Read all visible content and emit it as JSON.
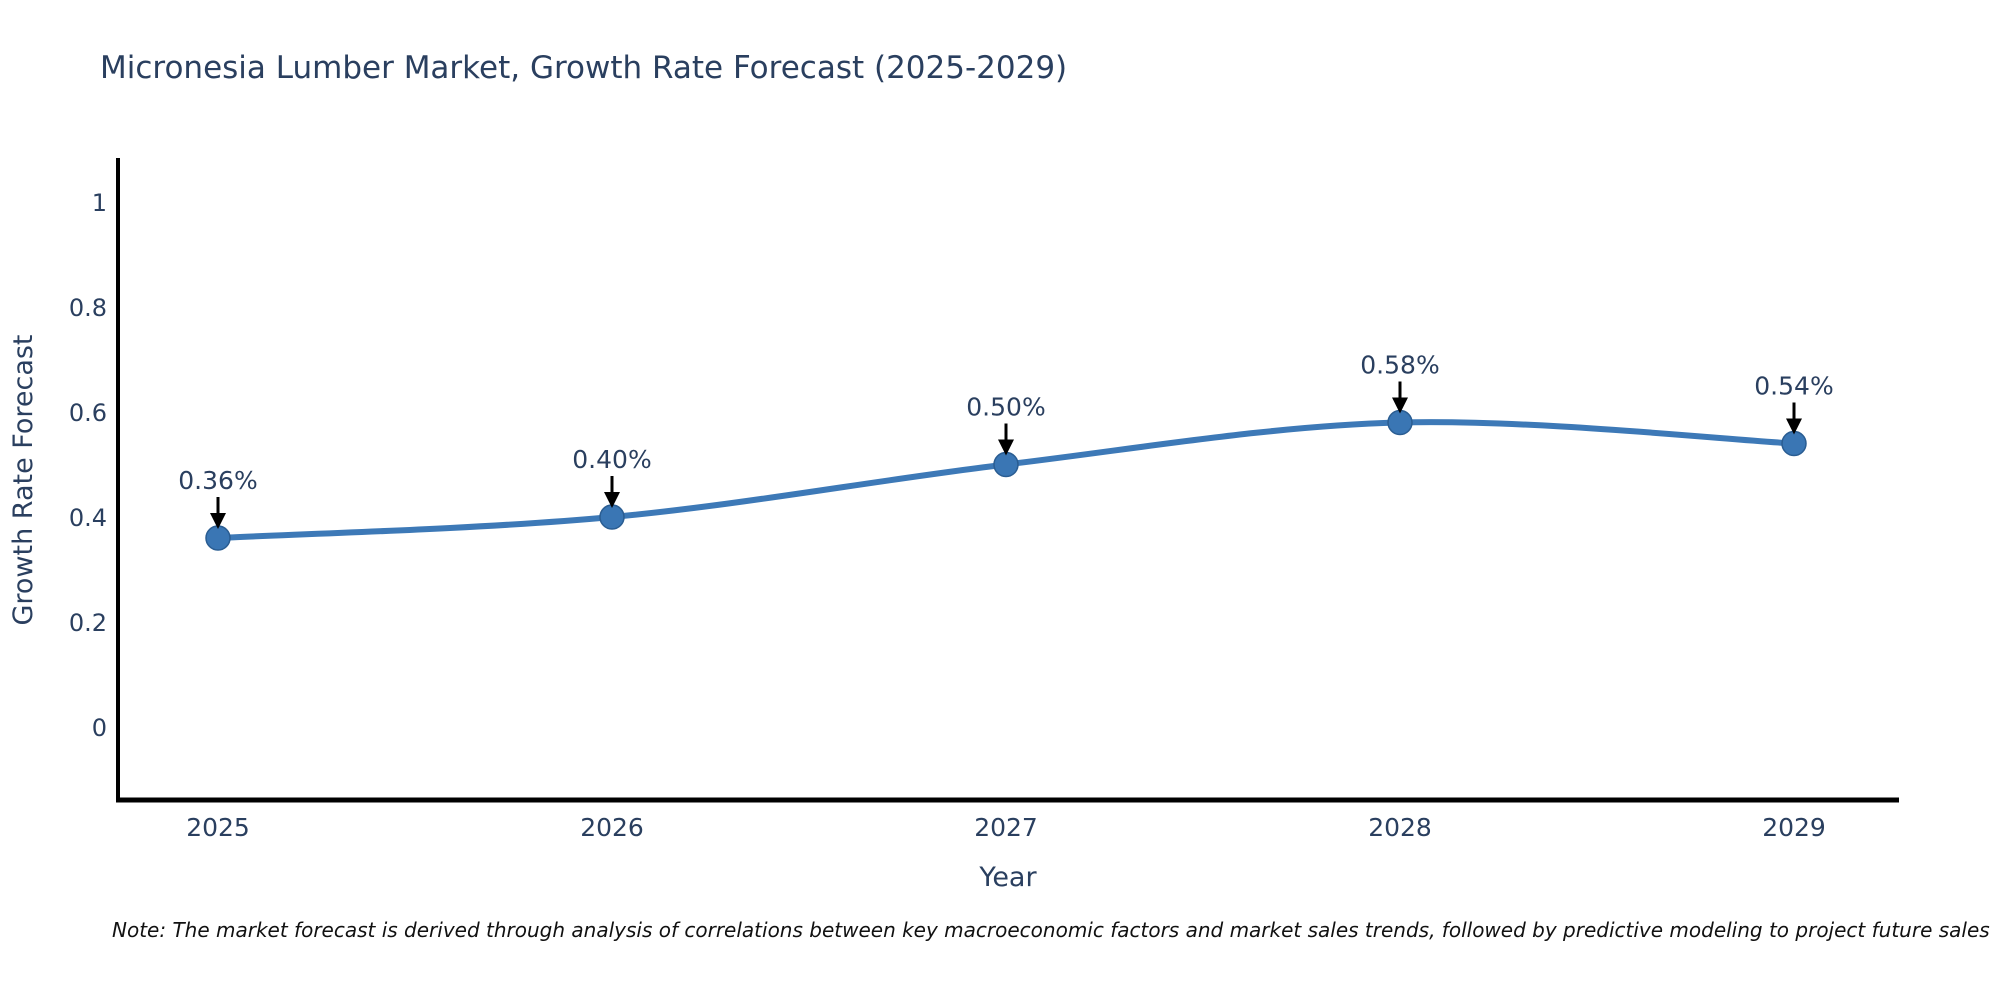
{
  "title": "Micronesia Lumber Market, Growth Rate Forecast (2025-2029)",
  "note": "Note: The market forecast is derived through analysis of correlations between key macroeconomic factors and market sales trends, followed by predictive modeling to project future sales",
  "chart_data": {
    "type": "line",
    "title": "Micronesia Lumber Market, Growth Rate Forecast (2025-2029)",
    "xlabel": "Year",
    "ylabel": "Growth Rate Forecast",
    "categories": [
      "2025",
      "2026",
      "2027",
      "2028",
      "2029"
    ],
    "series": [
      {
        "name": "Growth Rate Forecast",
        "values": [
          0.36,
          0.4,
          0.5,
          0.58,
          0.54
        ]
      }
    ],
    "point_labels": [
      "0.36%",
      "0.40%",
      "0.50%",
      "0.58%",
      "0.54%"
    ],
    "ytick_labels": [
      "0",
      "0.2",
      "0.4",
      "0.6",
      "0.8",
      "1"
    ],
    "ytick_values": [
      0,
      0.2,
      0.4,
      0.6,
      0.8,
      1
    ],
    "ylim": [
      -0.14,
      1.08
    ],
    "grid": false,
    "legend_position": "none",
    "line_shape": "spline",
    "annotation_style": "arrow-down-to-point",
    "colors": {
      "line": "#3d79b7",
      "marker_fill": "#3a76b4",
      "marker_stroke": "#2a5d92",
      "axis": "#000000",
      "text": "#2a3f5f",
      "annotation_text": "#2a3f5f",
      "annotation_arrow": "#000000",
      "note_text": "#111111",
      "background": "#ffffff"
    }
  }
}
